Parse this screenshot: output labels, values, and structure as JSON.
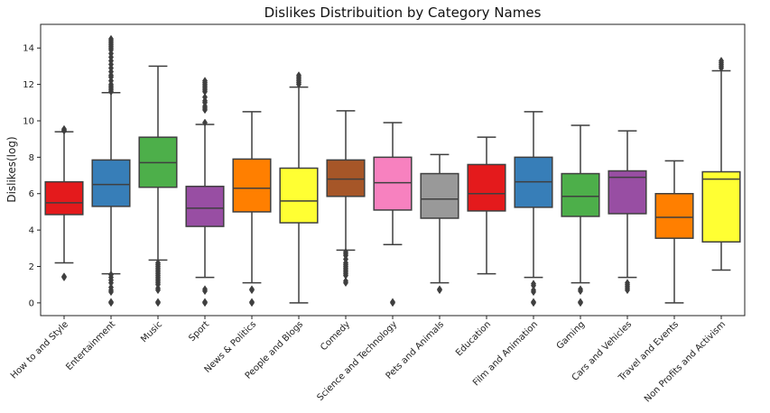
{
  "chart_data": {
    "type": "box",
    "title": "Dislikes Distribuition by Category Names",
    "xlabel": "",
    "ylabel": "Dislikes(log)",
    "ylim": [
      -0.7,
      15.3
    ],
    "yticks": [
      0,
      2,
      4,
      6,
      8,
      10,
      12,
      14
    ],
    "categories": [
      "How to and Style",
      "Entertainment",
      "Music",
      "Sport",
      "News & Politics",
      "People and Blogs",
      "Comedy",
      "Science and Technology",
      "Pets and Animals",
      "Education",
      "Film and Animation",
      "Gaming",
      "Cars and Vehicles",
      "Travel and Events",
      "Non Profits and Activism"
    ],
    "colors": [
      "#e41a1c",
      "#377eb8",
      "#4daf4a",
      "#984ea3",
      "#ff7f00",
      "#ffff33",
      "#a65628",
      "#f781bf",
      "#999999",
      "#e41a1c",
      "#377eb8",
      "#4daf4a",
      "#984ea3",
      "#ff7f00",
      "#ffff33"
    ],
    "boxes": [
      {
        "whislo": 2.2,
        "q1": 4.85,
        "med": 5.5,
        "q3": 6.65,
        "whishi": 9.4,
        "fliers": [
          1.4,
          1.45,
          9.45,
          9.5,
          9.55
        ]
      },
      {
        "whislo": 1.6,
        "q1": 5.3,
        "med": 6.5,
        "q3": 7.85,
        "whishi": 11.55,
        "fliers": [
          0.0,
          0.05,
          0.6,
          0.7,
          0.85,
          1.1,
          1.25,
          1.4,
          1.55,
          11.6,
          11.7,
          11.8,
          11.9,
          12.0,
          12.2,
          12.4,
          12.5,
          12.7,
          12.9,
          13.1,
          13.3,
          13.5,
          13.7,
          13.9,
          14.0,
          14.1,
          14.2,
          14.3,
          14.4,
          14.5
        ]
      },
      {
        "whislo": 2.35,
        "q1": 6.35,
        "med": 7.7,
        "q3": 9.1,
        "whishi": 13.0,
        "fliers": [
          0.0,
          0.05,
          0.7,
          0.8,
          1.0,
          1.1,
          1.2,
          1.3,
          1.4,
          1.5,
          1.6,
          1.7,
          1.8,
          1.9,
          2.0,
          2.1,
          2.2
        ]
      },
      {
        "whislo": 1.4,
        "q1": 4.2,
        "med": 5.2,
        "q3": 6.4,
        "whishi": 9.8,
        "fliers": [
          0.0,
          0.05,
          0.65,
          0.75,
          9.9,
          10.6,
          10.7,
          10.8,
          11.0,
          11.1,
          11.3,
          11.6,
          11.7,
          11.8,
          11.9,
          12.0,
          12.1,
          12.2
        ]
      },
      {
        "whislo": 1.1,
        "q1": 5.0,
        "med": 6.3,
        "q3": 7.9,
        "whishi": 10.5,
        "fliers": [
          0.0,
          0.05,
          0.7,
          0.75
        ]
      },
      {
        "whislo": 0.0,
        "q1": 4.4,
        "med": 5.6,
        "q3": 7.4,
        "whishi": 11.85,
        "fliers": [
          12.0,
          12.1,
          12.2,
          12.3,
          12.4,
          12.5
        ]
      },
      {
        "whislo": 2.9,
        "q1": 5.85,
        "med": 6.8,
        "q3": 7.85,
        "whishi": 10.55,
        "fliers": [
          1.1,
          1.2,
          1.5,
          1.6,
          1.7,
          1.8,
          1.9,
          2.0,
          2.1,
          2.2,
          2.4,
          2.6,
          2.7,
          2.8
        ]
      },
      {
        "whislo": 3.2,
        "q1": 5.1,
        "med": 6.6,
        "q3": 8.0,
        "whishi": 9.9,
        "fliers": [
          0.0,
          0.05
        ]
      },
      {
        "whislo": 1.1,
        "q1": 4.65,
        "med": 5.7,
        "q3": 7.1,
        "whishi": 8.15,
        "fliers": [
          0.7,
          0.75
        ]
      },
      {
        "whislo": 1.6,
        "q1": 5.05,
        "med": 6.0,
        "q3": 7.6,
        "whishi": 9.1,
        "fliers": []
      },
      {
        "whislo": 1.4,
        "q1": 5.25,
        "med": 6.65,
        "q3": 8.0,
        "whishi": 10.5,
        "fliers": [
          0.0,
          0.05,
          0.6,
          0.7,
          0.95,
          1.05
        ]
      },
      {
        "whislo": 1.1,
        "q1": 4.75,
        "med": 5.85,
        "q3": 7.1,
        "whishi": 9.75,
        "fliers": [
          0.0,
          0.05,
          0.65,
          0.75
        ]
      },
      {
        "whislo": 1.4,
        "q1": 4.9,
        "med": 6.9,
        "q3": 7.25,
        "whishi": 9.45,
        "fliers": [
          0.7,
          0.8,
          0.9,
          1.0,
          1.1
        ]
      },
      {
        "whislo": 0.0,
        "q1": 3.55,
        "med": 4.7,
        "q3": 6.0,
        "whishi": 7.8,
        "fliers": []
      },
      {
        "whislo": 1.8,
        "q1": 3.35,
        "med": 6.8,
        "q3": 7.2,
        "whishi": 12.75,
        "fliers": [
          12.9,
          13.0,
          13.1,
          13.2,
          13.3
        ]
      }
    ]
  }
}
